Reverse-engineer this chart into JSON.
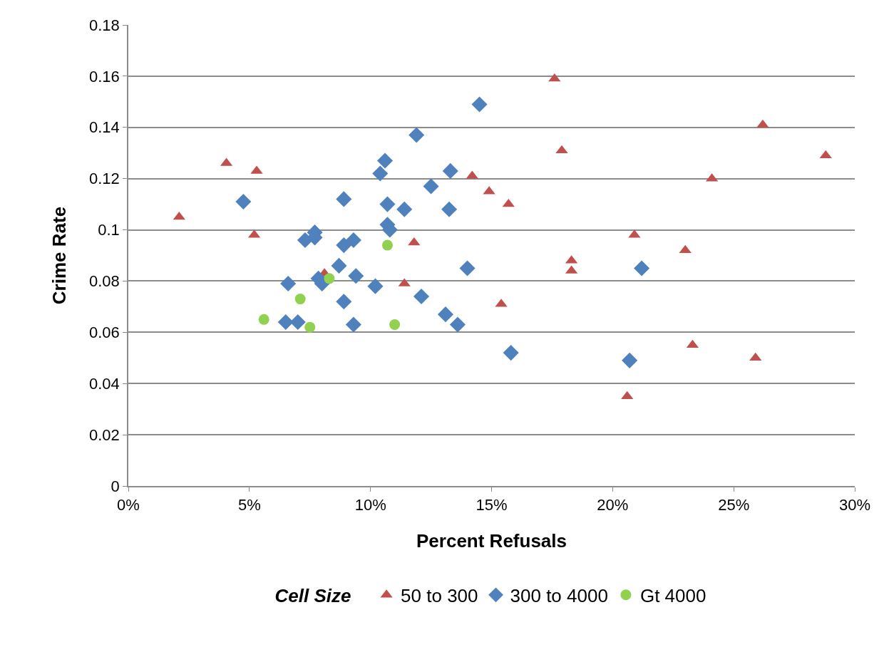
{
  "chart_data": {
    "type": "scatter",
    "xlabel": "Percent Refusals",
    "ylabel": "Crime Rate",
    "legend_title": "Cell Size",
    "xlim": [
      0,
      30
    ],
    "xticks": [
      {
        "value": 0,
        "label": "0%"
      },
      {
        "value": 5,
        "label": "5%"
      },
      {
        "value": 10,
        "label": "10%"
      },
      {
        "value": 15,
        "label": "15%"
      },
      {
        "value": 20,
        "label": "20%"
      },
      {
        "value": 25,
        "label": "25%"
      },
      {
        "value": 30,
        "label": "30%"
      }
    ],
    "ylim": [
      0,
      0.18
    ],
    "yticks": [
      0,
      0.02,
      0.04,
      0.06,
      0.08,
      0.1,
      0.12,
      0.14,
      0.16,
      0.18
    ],
    "grid": "y",
    "legend": "bottom",
    "series": [
      {
        "name": "50 to 300",
        "color": "#c0504d",
        "marker": "triangle",
        "x": [
          2.1,
          4.05,
          5.3,
          5.2,
          8.1,
          11.8,
          11.4,
          14.2,
          17.6,
          26.2,
          17.9,
          28.8,
          24.1,
          14.9,
          15.7,
          20.9,
          23.0,
          18.3,
          18.3,
          15.4,
          23.3,
          25.9,
          20.6
        ],
        "values": [
          0.105,
          0.126,
          0.123,
          0.098,
          0.083,
          0.095,
          0.079,
          0.121,
          0.159,
          0.141,
          0.131,
          0.129,
          0.12,
          0.115,
          0.11,
          0.098,
          0.092,
          0.088,
          0.084,
          0.071,
          0.055,
          0.05,
          0.035
        ]
      },
      {
        "name": "300 to 4000",
        "color": "#4f81bd",
        "marker": "diamond",
        "x": [
          4.75,
          6.5,
          7.0,
          6.6,
          7.3,
          7.7,
          7.7,
          7.85,
          8.0,
          8.7,
          8.9,
          8.9,
          9.3,
          9.4,
          8.9,
          9.3,
          10.2,
          10.4,
          10.6,
          10.7,
          10.7,
          10.8,
          11.4,
          11.9,
          12.5,
          12.1,
          13.3,
          13.25,
          13.1,
          13.6,
          14.0,
          14.5,
          15.8,
          20.7,
          21.2
        ],
        "values": [
          0.111,
          0.064,
          0.064,
          0.079,
          0.096,
          0.099,
          0.097,
          0.081,
          0.079,
          0.086,
          0.094,
          0.112,
          0.096,
          0.082,
          0.072,
          0.063,
          0.078,
          0.122,
          0.127,
          0.11,
          0.102,
          0.1,
          0.108,
          0.137,
          0.117,
          0.074,
          0.123,
          0.108,
          0.067,
          0.063,
          0.085,
          0.149,
          0.052,
          0.049,
          0.085
        ]
      },
      {
        "name": "Gt 4000",
        "color": "#92d050",
        "marker": "circle",
        "x": [
          5.6,
          7.1,
          7.5,
          8.3,
          10.7,
          11.0
        ],
        "values": [
          0.065,
          0.073,
          0.062,
          0.081,
          0.094,
          0.063
        ]
      }
    ]
  }
}
